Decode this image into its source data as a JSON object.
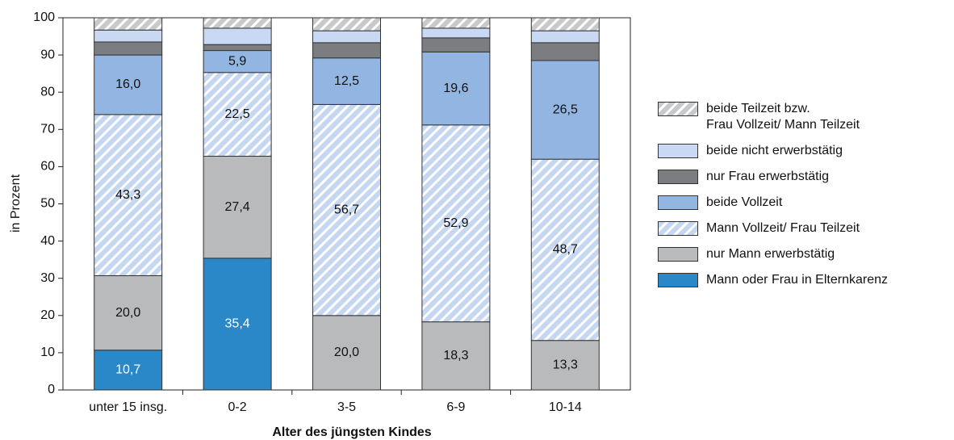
{
  "chart_data": {
    "type": "stacked_bar",
    "categories": [
      "unter 15 insg.",
      "0-2",
      "3-5",
      "6-9",
      "10-14"
    ],
    "xlabel": "Alter des jüngsten Kindes",
    "ylabel": "in Prozent",
    "ylim": [
      0,
      100
    ],
    "yticks": [
      0,
      10,
      20,
      30,
      40,
      50,
      60,
      70,
      80,
      90,
      100
    ],
    "series": [
      {
        "name": "Mann oder Frau in Elternkarenz",
        "color": "#2a87c8",
        "hatch": false,
        "label_color": "#ffffff",
        "values": [
          10.7,
          35.4,
          null,
          null,
          null
        ],
        "value_labels": [
          "10,7",
          "35,4",
          null,
          null,
          null
        ]
      },
      {
        "name": "nur Mann erwerbstätig",
        "color": "#b9babc",
        "hatch": false,
        "values": [
          20.0,
          27.4,
          20.0,
          18.3,
          13.3
        ],
        "value_labels": [
          "20,0",
          "27,4",
          "20,0",
          "18,3",
          "13,3"
        ]
      },
      {
        "name": "Mann Vollzeit/ Frau Teilzeit",
        "color": "#c6d7f1",
        "hatch": true,
        "values": [
          43.3,
          22.5,
          56.7,
          52.9,
          48.7
        ],
        "value_labels": [
          "43,3",
          "22,5",
          "56,7",
          "52,9",
          "48,7"
        ]
      },
      {
        "name": "beide Vollzeit",
        "color": "#93b5e1",
        "hatch": false,
        "values": [
          16.0,
          5.9,
          12.5,
          19.6,
          26.5
        ],
        "value_labels": [
          "16,0",
          "5,9",
          "12,5",
          "19,6",
          "26,5"
        ]
      },
      {
        "name": "nur Frau erwerbstätig",
        "color": "#7b7d81",
        "hatch": false,
        "values": [
          3.5,
          1.6,
          4.1,
          3.8,
          4.8
        ]
      },
      {
        "name": "beide nicht erwerbstätig",
        "color": "#c9d9f4",
        "hatch": false,
        "values": [
          3.2,
          4.4,
          3.2,
          2.6,
          3.2
        ]
      },
      {
        "name": "beide Teilzeit bzw.\nFrau Vollzeit/ Mann Teilzeit",
        "color": "#c8c9cb",
        "hatch": true,
        "values": [
          3.3,
          2.8,
          3.5,
          2.8,
          3.5
        ]
      }
    ]
  }
}
